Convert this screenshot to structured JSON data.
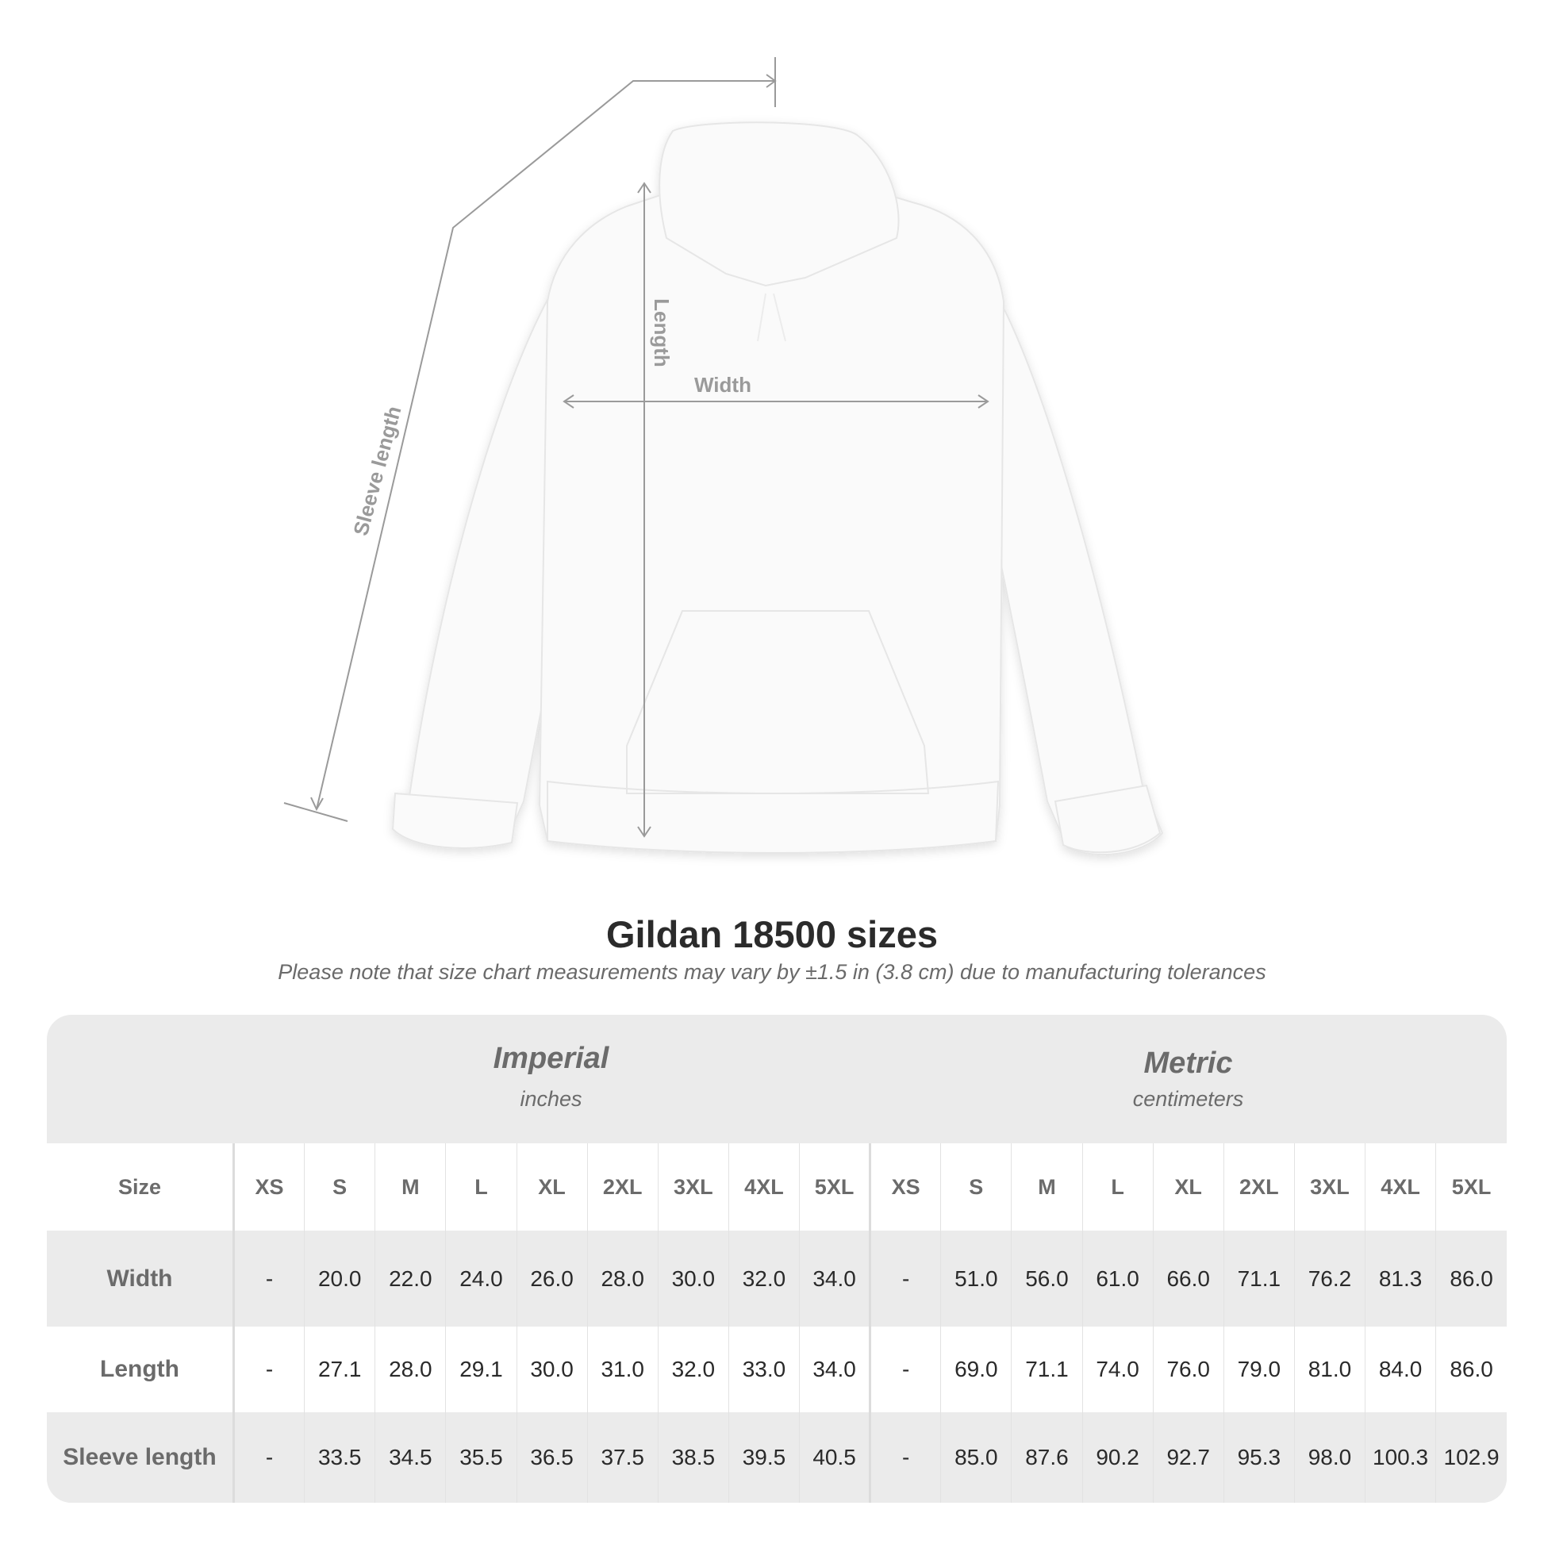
{
  "figure": {
    "labels": {
      "length": "Length",
      "width": "Width",
      "sleeve_length": "Sleeve length"
    }
  },
  "title": "Gildan 18500 sizes",
  "note": "Please note that size chart measurements may vary by ±1.5 in (3.8 cm) due to manufacturing tolerances",
  "table": {
    "imperial": {
      "name": "Imperial",
      "unit": "inches"
    },
    "metric": {
      "name": "Metric",
      "unit": "centimeters"
    },
    "size_label": "Size",
    "sizes": [
      "XS",
      "S",
      "M",
      "L",
      "XL",
      "2XL",
      "3XL",
      "4XL",
      "5XL"
    ],
    "rows": [
      {
        "label": "Width",
        "imperial": [
          "-",
          "20.0",
          "22.0",
          "24.0",
          "26.0",
          "28.0",
          "30.0",
          "32.0",
          "34.0"
        ],
        "metric": [
          "-",
          "51.0",
          "56.0",
          "61.0",
          "66.0",
          "71.1",
          "76.2",
          "81.3",
          "86.0"
        ]
      },
      {
        "label": "Length",
        "imperial": [
          "-",
          "27.1",
          "28.0",
          "29.1",
          "30.0",
          "31.0",
          "32.0",
          "33.0",
          "34.0"
        ],
        "metric": [
          "-",
          "69.0",
          "71.1",
          "74.0",
          "76.0",
          "79.0",
          "81.0",
          "84.0",
          "86.0"
        ]
      },
      {
        "label": "Sleeve length",
        "imperial": [
          "-",
          "33.5",
          "34.5",
          "35.5",
          "36.5",
          "37.5",
          "38.5",
          "39.5",
          "40.5"
        ],
        "metric": [
          "-",
          "85.0",
          "87.6",
          "90.2",
          "92.7",
          "95.3",
          "98.0",
          "100.3",
          "102.9"
        ]
      }
    ]
  },
  "colors": {
    "header_bg": "#ebebeb",
    "label_text": "#6b6b6b",
    "value_text": "#2a2a2a",
    "measure_line": "#9a9a9a"
  }
}
